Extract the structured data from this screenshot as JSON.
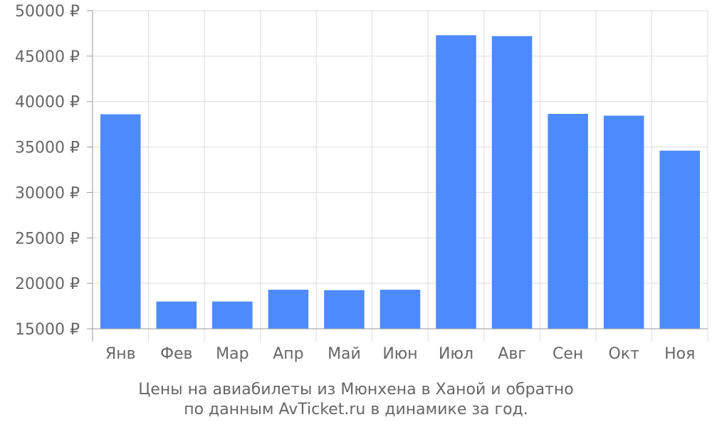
{
  "chart_data": {
    "type": "bar",
    "categories": [
      "Янв",
      "Фев",
      "Мар",
      "Апр",
      "Май",
      "Июн",
      "Июл",
      "Авг",
      "Сен",
      "Окт",
      "Ноя"
    ],
    "values": [
      38600,
      18000,
      18000,
      19300,
      19250,
      19300,
      47300,
      47200,
      38650,
      38450,
      34600
    ],
    "ylim": [
      15000,
      50000
    ],
    "yticks": [
      15000,
      20000,
      25000,
      30000,
      35000,
      40000,
      45000,
      50000
    ],
    "ytick_suffix": " ₽",
    "grid": true,
    "bar_color": "#4d8afc",
    "grid_color": "#dddddd",
    "axis_color": "#999999",
    "text_color": "#666666"
  },
  "caption": {
    "line1": "Цены на авиабилеты из Мюнхена в Ханой и обратно",
    "line2": "по данным AvTicket.ru в динамике за год."
  }
}
